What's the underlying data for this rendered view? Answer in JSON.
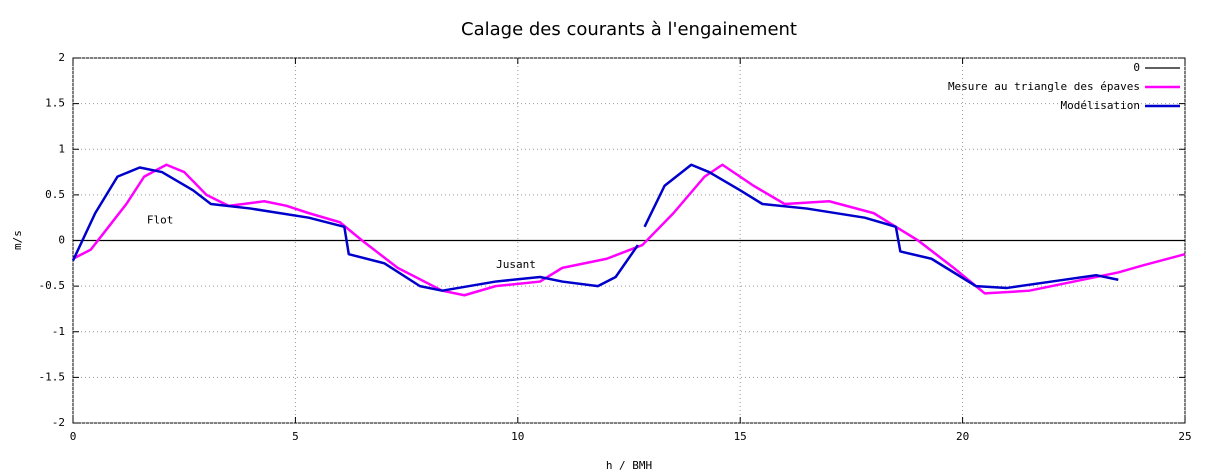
{
  "chart_data": {
    "type": "line",
    "title": "Calage des courants à l'engainement",
    "xlabel": "h / BMH",
    "ylabel": "m/s",
    "xlim": [
      0,
      25
    ],
    "ylim": [
      -2,
      2
    ],
    "xticks": [
      0,
      5,
      10,
      15,
      20,
      25
    ],
    "yticks": [
      -2,
      -1.5,
      -1,
      -0.5,
      0,
      0.5,
      1,
      1.5,
      2
    ],
    "grid": true,
    "legend": "upper right",
    "annotations": [
      {
        "text": "Flot",
        "x": 1.96,
        "y": 0.22
      },
      {
        "text": "Jusant",
        "x": 9.96,
        "y": -0.27
      }
    ],
    "series": [
      {
        "name": "0",
        "color": "#000000",
        "x": [
          0,
          25
        ],
        "values": [
          0,
          0
        ]
      },
      {
        "name": "Mesure au triangle des épaves",
        "color": "#ff00ff",
        "x": [
          0,
          0.4,
          0.8,
          1.2,
          1.6,
          2.1,
          2.5,
          3.0,
          3.5,
          4.3,
          4.8,
          5.3,
          6.0,
          6.5,
          7.3,
          8.3,
          8.8,
          9.5,
          10.5,
          11.0,
          12.0,
          12.8,
          13.5,
          14.2,
          14.6,
          15.3,
          16.0,
          17.0,
          18.0,
          18.5,
          19.0,
          19.8,
          20.5,
          21.5,
          22.5,
          23.5,
          24.0,
          25.0
        ],
        "values": [
          -0.2,
          -0.1,
          0.15,
          0.4,
          0.7,
          0.83,
          0.75,
          0.5,
          0.38,
          0.43,
          0.38,
          0.3,
          0.2,
          0.0,
          -0.3,
          -0.55,
          -0.6,
          -0.5,
          -0.45,
          -0.3,
          -0.2,
          -0.05,
          0.3,
          0.7,
          0.83,
          0.6,
          0.4,
          0.43,
          0.3,
          0.15,
          0.0,
          -0.3,
          -0.58,
          -0.55,
          -0.45,
          -0.35,
          -0.28,
          -0.15
        ]
      },
      {
        "name": "Modélisation",
        "color": "#0000cc",
        "x": [
          0,
          0.5,
          1.0,
          1.5,
          2.0,
          2.7,
          3.1,
          4.0,
          5.3,
          6.1,
          6.2,
          7.0,
          7.8,
          8.3,
          9.5,
          10.5,
          11.0,
          11.8,
          12.2,
          12.7,
          12.78,
          12.85,
          13.3,
          13.9,
          14.3,
          15.0,
          15.5,
          16.5,
          17.8,
          18.5,
          18.6,
          19.3,
          20.3,
          21.0,
          22.0,
          23.0,
          23.5
        ],
        "values": [
          -0.22,
          0.3,
          0.7,
          0.8,
          0.75,
          0.55,
          0.4,
          0.35,
          0.25,
          0.15,
          -0.15,
          -0.25,
          -0.5,
          -0.55,
          -0.45,
          -0.4,
          -0.45,
          -0.5,
          -0.4,
          -0.05,
          null,
          0.15,
          0.6,
          0.83,
          0.75,
          0.55,
          0.4,
          0.35,
          0.25,
          0.15,
          -0.12,
          -0.2,
          -0.5,
          -0.52,
          -0.45,
          -0.38,
          -0.43
        ]
      }
    ]
  }
}
